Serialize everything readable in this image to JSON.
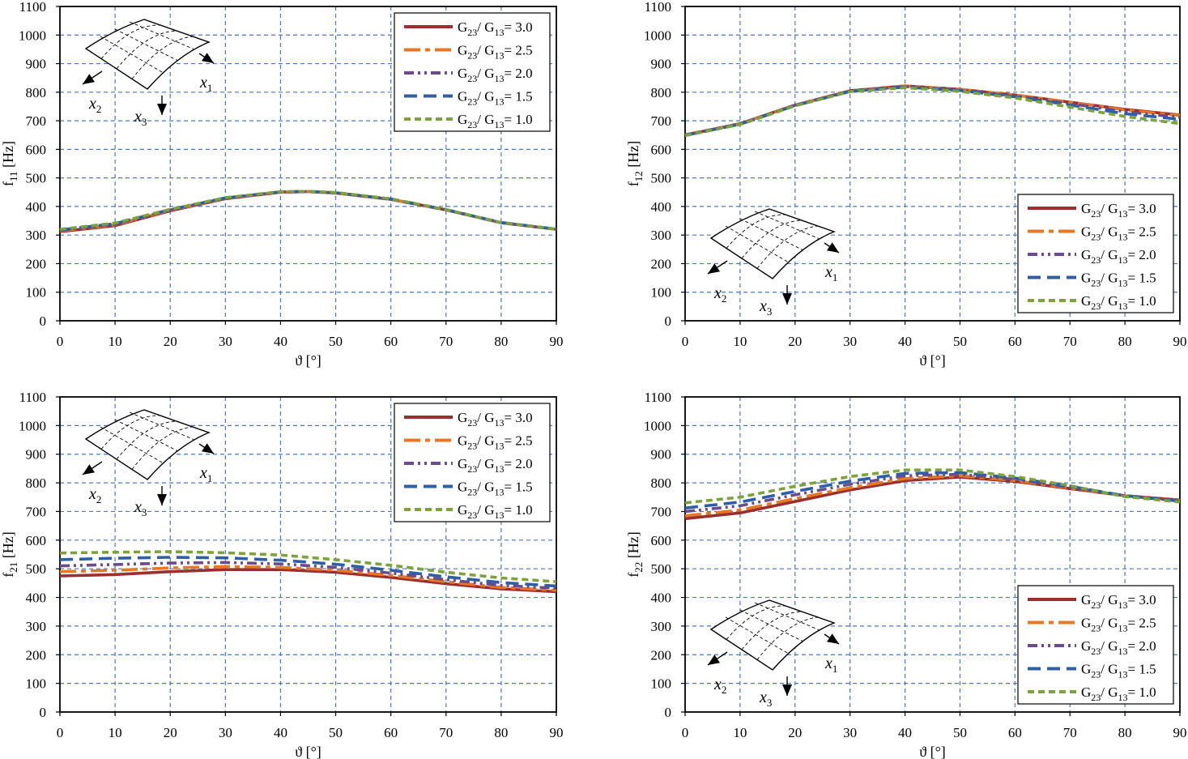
{
  "chart_data": [
    {
      "type": "line",
      "ylabel": "f",
      "ylabel_sub": "11",
      "yunit": " [Hz]",
      "xlabel": "ϑ [°]",
      "xlim": [
        0,
        90
      ],
      "ylim": [
        0,
        1100
      ],
      "xticks": [
        "0",
        "10",
        "20",
        "30",
        "40",
        "50",
        "60",
        "70",
        "80",
        "90"
      ],
      "yticks": [
        "0",
        "100",
        "200",
        "300",
        "400",
        "500",
        "600",
        "700",
        "800",
        "900",
        "1000",
        "1100"
      ],
      "grid": true,
      "legend_position": "top-right",
      "inset_position": "top-left",
      "x": [
        0,
        10,
        20,
        30,
        40,
        45,
        50,
        60,
        70,
        80,
        90
      ],
      "series": [
        {
          "name": "G23/ G13 = 3.0",
          "values": [
            312,
            333,
            385,
            427,
            450,
            452,
            447,
            425,
            388,
            343,
            320
          ]
        },
        {
          "name": "G23/ G13 = 2.5",
          "values": [
            315,
            336,
            387,
            428,
            450,
            452,
            447,
            425,
            388,
            343,
            320
          ]
        },
        {
          "name": "G23/ G13 = 2.0",
          "values": [
            317,
            338,
            388,
            429,
            451,
            452,
            448,
            425,
            388,
            343,
            320
          ]
        },
        {
          "name": "G23/ G13 = 1.5",
          "values": [
            318,
            340,
            389,
            430,
            451,
            453,
            448,
            426,
            389,
            344,
            321
          ]
        },
        {
          "name": "G23/ G13 = 1.0",
          "values": [
            320,
            342,
            390,
            431,
            452,
            453,
            449,
            427,
            389,
            344,
            321
          ]
        }
      ]
    },
    {
      "type": "line",
      "ylabel": "f",
      "ylabel_sub": "12",
      "yunit": " [Hz]",
      "xlabel": "ϑ [°]",
      "xlim": [
        0,
        90
      ],
      "ylim": [
        0,
        1100
      ],
      "xticks": [
        "0",
        "10",
        "20",
        "30",
        "40",
        "50",
        "60",
        "70",
        "80",
        "90"
      ],
      "yticks": [
        "0",
        "100",
        "200",
        "300",
        "400",
        "500",
        "600",
        "700",
        "800",
        "900",
        "1000",
        "1100"
      ],
      "grid": true,
      "legend_position": "bottom-right",
      "inset_position": "bottom-left",
      "x": [
        0,
        10,
        20,
        30,
        40,
        50,
        60,
        70,
        80,
        90
      ],
      "series": [
        {
          "name": "G23/ G13 = 3.0",
          "values": [
            650,
            690,
            755,
            805,
            822,
            810,
            790,
            765,
            740,
            720
          ]
        },
        {
          "name": "G23/ G13 = 2.5",
          "values": [
            651,
            690,
            755,
            805,
            822,
            810,
            790,
            765,
            738,
            718
          ]
        },
        {
          "name": "G23/ G13 = 2.0",
          "values": [
            650,
            689,
            754,
            804,
            820,
            808,
            787,
            760,
            732,
            712
          ]
        },
        {
          "name": "G23/ G13 = 1.5",
          "values": [
            649,
            688,
            753,
            803,
            818,
            806,
            784,
            755,
            725,
            705
          ]
        },
        {
          "name": "G23/ G13 = 1.0",
          "values": [
            648,
            687,
            752,
            802,
            816,
            803,
            780,
            748,
            715,
            690
          ]
        }
      ]
    },
    {
      "type": "line",
      "ylabel": "f",
      "ylabel_sub": "21",
      "yunit": " [Hz]",
      "xlabel": "ϑ [°]",
      "xlim": [
        0,
        90
      ],
      "ylim": [
        0,
        1100
      ],
      "xticks": [
        "0",
        "10",
        "20",
        "30",
        "40",
        "50",
        "60",
        "70",
        "80",
        "90"
      ],
      "yticks": [
        "0",
        "100",
        "200",
        "300",
        "400",
        "500",
        "600",
        "700",
        "800",
        "900",
        "1000",
        "1100"
      ],
      "grid": true,
      "legend_position": "top-right",
      "inset_position": "top-left",
      "x": [
        0,
        10,
        20,
        30,
        40,
        50,
        60,
        70,
        80,
        90
      ],
      "series": [
        {
          "name": "G23/ G13 = 3.0",
          "values": [
            475,
            480,
            490,
            497,
            497,
            488,
            470,
            448,
            430,
            420
          ]
        },
        {
          "name": "G23/ G13 = 2.5",
          "values": [
            490,
            495,
            503,
            508,
            505,
            495,
            477,
            455,
            435,
            425
          ]
        },
        {
          "name": "G23/ G13 = 2.0",
          "values": [
            510,
            515,
            520,
            522,
            517,
            505,
            485,
            462,
            442,
            432
          ]
        },
        {
          "name": "G23/ G13 = 1.5",
          "values": [
            532,
            537,
            540,
            538,
            530,
            516,
            495,
            472,
            452,
            440
          ]
        },
        {
          "name": "G23/ G13 = 1.0",
          "values": [
            555,
            558,
            560,
            556,
            548,
            532,
            512,
            488,
            468,
            455
          ]
        }
      ]
    },
    {
      "type": "line",
      "ylabel": "f",
      "ylabel_sub": "22",
      "yunit": " [Hz]",
      "xlabel": "ϑ [°]",
      "xlim": [
        0,
        90
      ],
      "ylim": [
        0,
        1100
      ],
      "xticks": [
        "0",
        "10",
        "20",
        "30",
        "40",
        "50",
        "60",
        "70",
        "80",
        "90"
      ],
      "yticks": [
        "0",
        "100",
        "200",
        "300",
        "400",
        "500",
        "600",
        "700",
        "800",
        "900",
        "1000",
        "1100"
      ],
      "grid": true,
      "legend_position": "bottom-right",
      "inset_position": "bottom-left",
      "x": [
        0,
        10,
        20,
        30,
        40,
        50,
        60,
        70,
        80,
        90
      ],
      "series": [
        {
          "name": "G23/ G13 = 3.0",
          "values": [
            675,
            695,
            735,
            775,
            808,
            820,
            805,
            780,
            755,
            740
          ]
        },
        {
          "name": "G23/ G13 = 2.5",
          "values": [
            685,
            705,
            745,
            783,
            815,
            825,
            808,
            782,
            755,
            738
          ]
        },
        {
          "name": "G23/ G13 = 2.0",
          "values": [
            700,
            720,
            758,
            795,
            825,
            830,
            812,
            785,
            755,
            737
          ]
        },
        {
          "name": "G23/ G13 = 1.5",
          "values": [
            712,
            733,
            770,
            806,
            833,
            836,
            817,
            788,
            755,
            736
          ]
        },
        {
          "name": "G23/ G13 = 1.0",
          "values": [
            730,
            750,
            788,
            822,
            845,
            845,
            822,
            790,
            752,
            733
          ]
        }
      ]
    }
  ],
  "series_styles": [
    {
      "color": "#9b2e2e",
      "dash": "none"
    },
    {
      "color": "#e87722",
      "dash": "20,6,6,6"
    },
    {
      "color": "#6a4c8c",
      "dash": "12,5,3,5,3,5"
    },
    {
      "color": "#2e5fa6",
      "dash": "16,8"
    },
    {
      "color": "#7ba33a",
      "dash": "8,5"
    }
  ],
  "legend_text": {
    "g_main_1": "G",
    "g_sub_1": "23",
    "slash": "/ ",
    "g_main_2": "G",
    "g_sub_2": "13"
  },
  "legend_values": [
    "= 3.0",
    "= 2.5",
    "= 2.0",
    "= 1.5",
    "= 1.0"
  ],
  "inset_labels": {
    "x1": "x",
    "x1_sub": "1",
    "x2": "x",
    "x2_sub": "2",
    "x3": "x",
    "x3_sub": "3"
  },
  "colors": {
    "grid": "#4a78c0",
    "axis": "#000000",
    "frame": "#000000"
  }
}
